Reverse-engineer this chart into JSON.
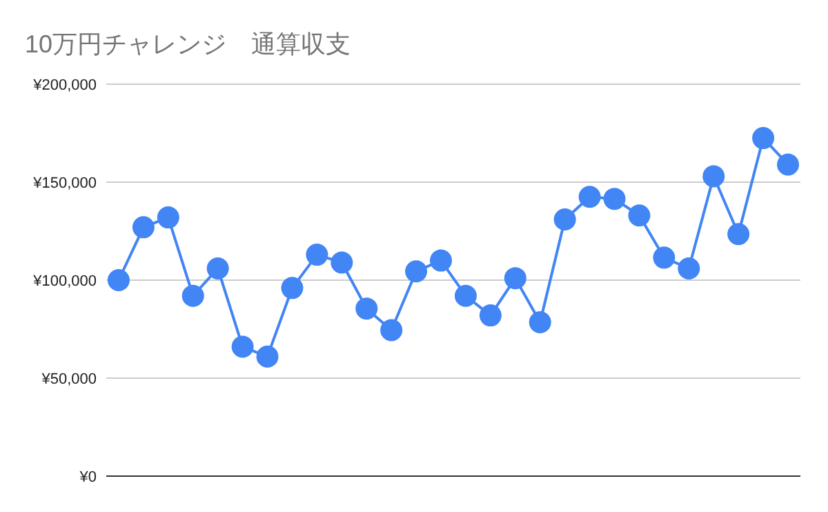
{
  "chart_data": {
    "type": "line",
    "title": "10万円チャレンジ　通算収支",
    "categories": [
      null,
      null,
      null,
      null,
      null,
      null,
      null,
      null,
      null,
      null,
      null,
      null,
      null,
      null,
      null,
      null,
      null,
      null,
      null,
      null,
      null,
      null,
      null,
      null,
      null,
      null,
      null,
      null
    ],
    "series": [
      {
        "color": "#4285f4",
        "values": [
          100000,
          127000,
          132000,
          92000,
          106000,
          66000,
          61000,
          96000,
          113000,
          109000,
          85500,
          74500,
          104500,
          110000,
          92000,
          82000,
          101000,
          78500,
          131000,
          142500,
          141500,
          133000,
          111500,
          106000,
          153000,
          123500,
          172500,
          159000
        ]
      }
    ],
    "ylim": [
      0,
      200000
    ],
    "yticks": [
      {
        "value": 0,
        "label": "¥0"
      },
      {
        "value": 50000,
        "label": "¥50,000"
      },
      {
        "value": 100000,
        "label": "¥100,000"
      },
      {
        "value": 150000,
        "label": "¥150,000"
      },
      {
        "value": 200000,
        "label": "¥200,000"
      }
    ],
    "grid": "y",
    "marker": "circle",
    "line_style": "solid"
  }
}
